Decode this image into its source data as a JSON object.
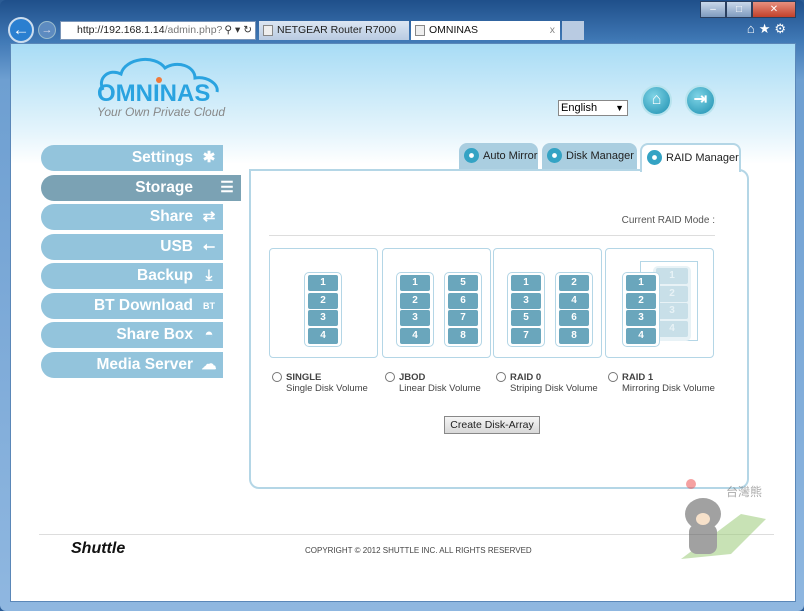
{
  "browser": {
    "url_host": "http://192.168.1.14",
    "url_path": "/admin.php?",
    "tabs": [
      {
        "label": "NETGEAR Router R7000"
      },
      {
        "label": "OMNINAS",
        "close": "x"
      }
    ]
  },
  "header": {
    "logo_name": "OMNINAS",
    "logo_tagline": "Your Own Private Cloud",
    "language": "English"
  },
  "sidebar": {
    "items": [
      {
        "label": "Settings",
        "icon": "tools-icon"
      },
      {
        "label": "Storage",
        "icon": "storage-icon",
        "active": true
      },
      {
        "label": "Share",
        "icon": "share-arrows-icon"
      },
      {
        "label": "USB",
        "icon": "usb-icon"
      },
      {
        "label": "Backup",
        "icon": "backup-icon"
      },
      {
        "label": "BT Download",
        "icon": "bt-icon"
      },
      {
        "label": "Share Box",
        "icon": "share-box-icon"
      },
      {
        "label": "Media Server",
        "icon": "media-server-icon"
      }
    ]
  },
  "tabs": [
    {
      "label": "Auto Mirror"
    },
    {
      "label": "Disk Manager"
    },
    {
      "label": "RAID Manager",
      "active": true
    }
  ],
  "raid": {
    "current_mode_label": "Current RAID Mode :",
    "options": [
      {
        "title": "SINGLE",
        "subtitle": "Single Disk Volume",
        "columns": [
          [
            "1",
            "2",
            "3",
            "4"
          ]
        ]
      },
      {
        "title": "JBOD",
        "subtitle": "Linear Disk Volume",
        "columns": [
          [
            "1",
            "2",
            "3",
            "4"
          ],
          [
            "5",
            "6",
            "7",
            "8"
          ]
        ]
      },
      {
        "title": "RAID 0",
        "subtitle": "Striping Disk Volume",
        "columns": [
          [
            "1",
            "3",
            "5",
            "7"
          ],
          [
            "2",
            "4",
            "6",
            "8"
          ]
        ]
      },
      {
        "title": "RAID 1",
        "subtitle": "Mirroring Disk Volume",
        "columns": [
          [
            "1",
            "2",
            "3",
            "4"
          ]
        ],
        "mirror": [
          "1",
          "2",
          "3",
          "4"
        ]
      }
    ],
    "create_button": "Create Disk-Array"
  },
  "footer": {
    "brand": "Shuttle",
    "copyright": "COPYRIGHT © 2012 SHUTTLE INC. ALL RIGHTS RESERVED"
  },
  "colors": {
    "sidebar": "#93c4dc",
    "sidebar_active": "#7ba2b4",
    "disk": "#6aa6bc",
    "accent": "#2aa3e0"
  }
}
